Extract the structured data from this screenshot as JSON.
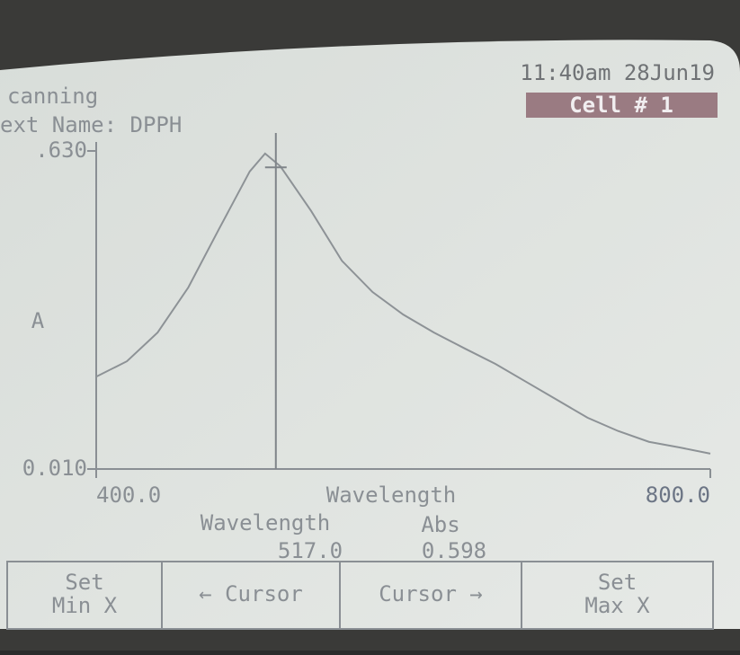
{
  "header": {
    "status": "canning",
    "test_name": "ext Name: DPPH",
    "datetime": "11:40am 28Jun19",
    "cell": "Cell # 1"
  },
  "chart_data": {
    "type": "line",
    "ylabel": "A",
    "xlabel": "Wavelength",
    "x": [
      400,
      420,
      440,
      460,
      480,
      500,
      510,
      520,
      540,
      560,
      580,
      600,
      620,
      640,
      660,
      680,
      700,
      720,
      740,
      760,
      780,
      800
    ],
    "series": [
      {
        "color": "#8d9296",
        "values": [
          0.19,
          0.22,
          0.276,
          0.364,
          0.478,
          0.59,
          0.625,
          0.6,
          0.513,
          0.416,
          0.355,
          0.311,
          0.276,
          0.245,
          0.215,
          0.18,
          0.145,
          0.11,
          0.084,
          0.063,
          0.052,
          0.04
        ]
      }
    ],
    "xlim": [
      400,
      800
    ],
    "ylim": [
      0.01,
      0.63
    ],
    "xticks": [
      {
        "value": 400,
        "label": "400.0"
      },
      {
        "value": 800,
        "label": "800.0"
      }
    ],
    "yticks": [
      {
        "value": 0.01,
        "label": "0.010"
      },
      {
        "value": 0.63,
        "label": ".630"
      }
    ],
    "cursor": {
      "x": {
        "value": 517,
        "label": "517.0"
      },
      "y": {
        "value": 0.598,
        "label": "0.598"
      }
    },
    "readout_x_label": "Wavelength",
    "readout_y_label": "Abs"
  },
  "softkeys": [
    "Set\nMin X",
    "← Cursor",
    "Cursor →",
    "Set\nMax X"
  ]
}
